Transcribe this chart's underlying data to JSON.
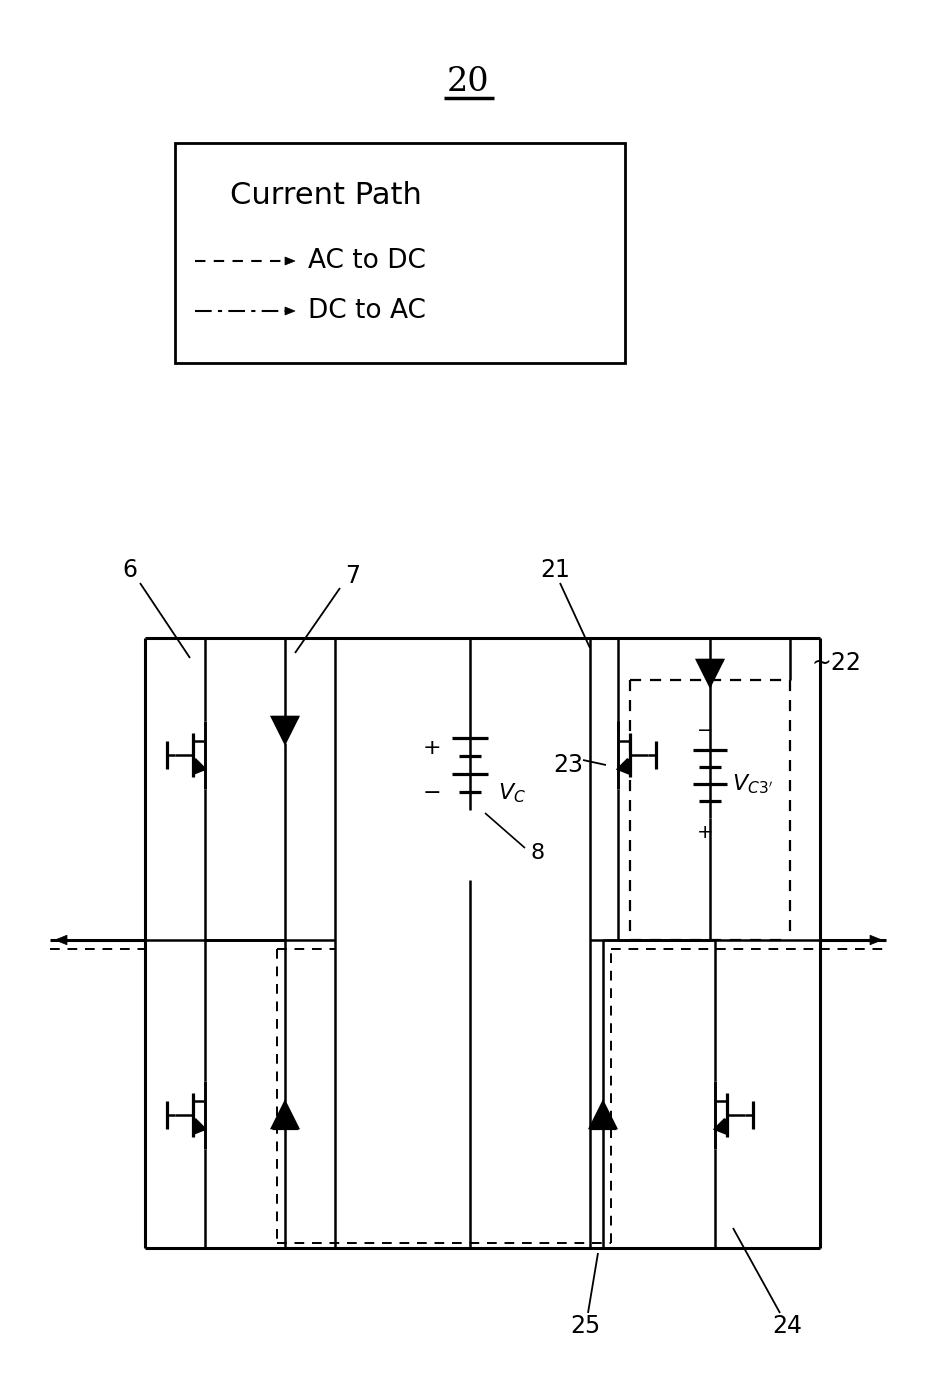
{
  "fig_width": 9.36,
  "fig_height": 13.99,
  "bg_color": "#ffffff",
  "label_20": "20",
  "label_6": "6",
  "label_7": "7",
  "label_8": "8",
  "label_21": "21",
  "label_22": "22",
  "label_23": "23",
  "label_24": "24",
  "label_25": "25",
  "legend_title": "Current Path",
  "legend_ac_dc": "AC to DC",
  "legend_dc_ac": "DC to AC",
  "plus": "+",
  "minus": "−"
}
